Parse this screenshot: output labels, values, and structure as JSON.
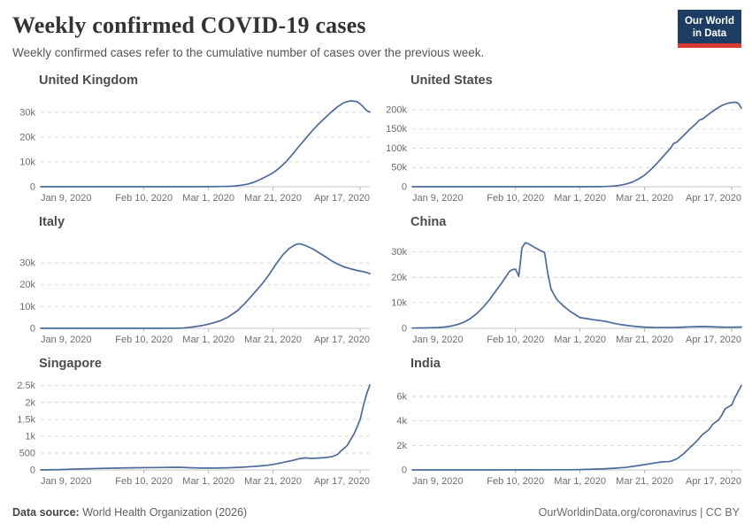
{
  "header": {
    "title": "Weekly confirmed COVID-19 cases",
    "subtitle": "Weekly confirmed cases refer to the cumulative number of cases over the previous week.",
    "logo": {
      "line1": "Our World",
      "line2": "in Data",
      "bg_color": "#1d3d63",
      "accent_color": "#d73c34"
    }
  },
  "footer": {
    "datasource_label": "Data source:",
    "datasource_value": " World Health Organization (2026)",
    "right_text": "OurWorldinData.org/coronavirus | CC BY"
  },
  "chart_data": {
    "type": "line",
    "line_color": "#4c6a9c",
    "grid_color": "#d9d9d9",
    "axis_color": "#c6c6c6",
    "tick_color": "#b4b4b4",
    "tick_text_color": "#6e6e6e",
    "grid_on": true,
    "x_unit": "days since Jan 9, 2020",
    "x_domain": [
      0,
      102
    ],
    "x_ticks": [
      {
        "day": 0,
        "label": "Jan 9, 2020"
      },
      {
        "day": 32,
        "label": "Feb 10, 2020"
      },
      {
        "day": 52,
        "label": "Mar 1, 2020"
      },
      {
        "day": 72,
        "label": "Mar 21, 2020"
      },
      {
        "day": 99,
        "label": "Apr 17, 2020"
      }
    ],
    "charts": [
      {
        "title": "United Kingdom",
        "y_max": 36000,
        "y_ticks": [
          {
            "v": 0,
            "label": "0"
          },
          {
            "v": 10000,
            "label": "10k"
          },
          {
            "v": 20000,
            "label": "20k"
          },
          {
            "v": 30000,
            "label": "30k"
          }
        ],
        "points": [
          [
            0,
            0
          ],
          [
            8,
            0
          ],
          [
            16,
            0
          ],
          [
            24,
            0
          ],
          [
            32,
            0
          ],
          [
            40,
            2
          ],
          [
            46,
            10
          ],
          [
            52,
            40
          ],
          [
            56,
            100
          ],
          [
            58,
            160
          ],
          [
            60,
            300
          ],
          [
            62,
            600
          ],
          [
            64,
            1000
          ],
          [
            66,
            1800
          ],
          [
            68,
            2900
          ],
          [
            70,
            4200
          ],
          [
            72,
            5600
          ],
          [
            74,
            7600
          ],
          [
            76,
            10000
          ],
          [
            78,
            13000
          ],
          [
            80,
            16200
          ],
          [
            82,
            19300
          ],
          [
            84,
            22300
          ],
          [
            86,
            25100
          ],
          [
            88,
            27600
          ],
          [
            90,
            30000
          ],
          [
            92,
            32200
          ],
          [
            94,
            33900
          ],
          [
            96,
            34600
          ],
          [
            98,
            34300
          ],
          [
            99,
            33400
          ],
          [
            100,
            32100
          ],
          [
            101,
            30700
          ],
          [
            102,
            30100
          ]
        ]
      },
      {
        "title": "United States",
        "y_max": 232000,
        "y_ticks": [
          {
            "v": 0,
            "label": "0"
          },
          {
            "v": 50000,
            "label": "50k"
          },
          {
            "v": 100000,
            "label": "100k"
          },
          {
            "v": 150000,
            "label": "150k"
          },
          {
            "v": 200000,
            "label": "200k"
          }
        ],
        "points": [
          [
            0,
            0
          ],
          [
            10,
            0
          ],
          [
            20,
            0
          ],
          [
            30,
            0
          ],
          [
            40,
            5
          ],
          [
            48,
            20
          ],
          [
            54,
            60
          ],
          [
            58,
            300
          ],
          [
            60,
            700
          ],
          [
            62,
            1500
          ],
          [
            64,
            3200
          ],
          [
            66,
            6500
          ],
          [
            68,
            11500
          ],
          [
            70,
            19500
          ],
          [
            72,
            30000
          ],
          [
            74,
            45000
          ],
          [
            76,
            62000
          ],
          [
            78,
            81000
          ],
          [
            80,
            100000
          ],
          [
            81,
            112000
          ],
          [
            82,
            116000
          ],
          [
            84,
            132000
          ],
          [
            86,
            149000
          ],
          [
            88,
            164000
          ],
          [
            89,
            173000
          ],
          [
            90,
            176000
          ],
          [
            92,
            189000
          ],
          [
            94,
            201000
          ],
          [
            96,
            211000
          ],
          [
            98,
            217000
          ],
          [
            100,
            219500
          ],
          [
            101,
            217000
          ],
          [
            102,
            204000
          ]
        ]
      },
      {
        "title": "Italy",
        "y_max": 41000,
        "y_ticks": [
          {
            "v": 0,
            "label": "0"
          },
          {
            "v": 10000,
            "label": "10k"
          },
          {
            "v": 20000,
            "label": "20k"
          },
          {
            "v": 30000,
            "label": "30k"
          }
        ],
        "points": [
          [
            0,
            0
          ],
          [
            12,
            0
          ],
          [
            24,
            0
          ],
          [
            36,
            0
          ],
          [
            42,
            30
          ],
          [
            44,
            120
          ],
          [
            46,
            400
          ],
          [
            48,
            800
          ],
          [
            50,
            1300
          ],
          [
            52,
            1900
          ],
          [
            54,
            2700
          ],
          [
            56,
            3700
          ],
          [
            58,
            5100
          ],
          [
            60,
            7100
          ],
          [
            61,
            8100
          ],
          [
            63,
            11000
          ],
          [
            65,
            14300
          ],
          [
            67,
            17600
          ],
          [
            69,
            21100
          ],
          [
            71,
            25100
          ],
          [
            73,
            29600
          ],
          [
            75,
            33600
          ],
          [
            77,
            36600
          ],
          [
            79,
            38400
          ],
          [
            80,
            38800
          ],
          [
            81,
            38500
          ],
          [
            82,
            38000
          ],
          [
            84,
            36700
          ],
          [
            85,
            35900
          ],
          [
            86,
            34900
          ],
          [
            88,
            33100
          ],
          [
            90,
            31100
          ],
          [
            92,
            29500
          ],
          [
            94,
            28200
          ],
          [
            96,
            27300
          ],
          [
            98,
            26600
          ],
          [
            100,
            26000
          ],
          [
            101,
            25600
          ],
          [
            102,
            25100
          ]
        ]
      },
      {
        "title": "China",
        "y_max": 35000,
        "y_ticks": [
          {
            "v": 0,
            "label": "0"
          },
          {
            "v": 10000,
            "label": "10k"
          },
          {
            "v": 20000,
            "label": "20k"
          },
          {
            "v": 30000,
            "label": "30k"
          }
        ],
        "points": [
          [
            0,
            120
          ],
          [
            4,
            170
          ],
          [
            8,
            320
          ],
          [
            10,
            520
          ],
          [
            12,
            850
          ],
          [
            14,
            1500
          ],
          [
            16,
            2400
          ],
          [
            18,
            3800
          ],
          [
            20,
            5800
          ],
          [
            22,
            8300
          ],
          [
            24,
            11300
          ],
          [
            26,
            14800
          ],
          [
            28,
            18300
          ],
          [
            29,
            20200
          ],
          [
            30,
            22100
          ],
          [
            31,
            23000
          ],
          [
            32,
            23200
          ],
          [
            33,
            20400
          ],
          [
            34,
            31500
          ],
          [
            35,
            33500
          ],
          [
            36,
            33100
          ],
          [
            38,
            31600
          ],
          [
            40,
            30300
          ],
          [
            41,
            29700
          ],
          [
            42,
            21500
          ],
          [
            43,
            15500
          ],
          [
            44,
            13000
          ],
          [
            45,
            11000
          ],
          [
            47,
            8600
          ],
          [
            49,
            6600
          ],
          [
            51,
            5000
          ],
          [
            52,
            4200
          ],
          [
            54,
            3800
          ],
          [
            56,
            3400
          ],
          [
            58,
            3100
          ],
          [
            60,
            2700
          ],
          [
            62,
            2100
          ],
          [
            64,
            1600
          ],
          [
            66,
            1200
          ],
          [
            68,
            900
          ],
          [
            70,
            650
          ],
          [
            72,
            500
          ],
          [
            75,
            350
          ],
          [
            78,
            300
          ],
          [
            81,
            360
          ],
          [
            84,
            490
          ],
          [
            86,
            590
          ],
          [
            88,
            660
          ],
          [
            90,
            690
          ],
          [
            92,
            650
          ],
          [
            94,
            560
          ],
          [
            96,
            480
          ],
          [
            98,
            440
          ],
          [
            100,
            470
          ],
          [
            102,
            520
          ]
        ]
      },
      {
        "title": "Singapore",
        "y_max": 2650,
        "y_ticks": [
          {
            "v": 0,
            "label": "0"
          },
          {
            "v": 500,
            "label": "500"
          },
          {
            "v": 1000,
            "label": "1k"
          },
          {
            "v": 1500,
            "label": "1.5k"
          },
          {
            "v": 2000,
            "label": "2k"
          },
          {
            "v": 2500,
            "label": "2.5k"
          }
        ],
        "points": [
          [
            0,
            0
          ],
          [
            6,
            10
          ],
          [
            12,
            28
          ],
          [
            18,
            45
          ],
          [
            24,
            55
          ],
          [
            30,
            65
          ],
          [
            36,
            72
          ],
          [
            40,
            76
          ],
          [
            43,
            80
          ],
          [
            46,
            66
          ],
          [
            50,
            56
          ],
          [
            54,
            56
          ],
          [
            58,
            63
          ],
          [
            62,
            80
          ],
          [
            65,
            96
          ],
          [
            68,
            118
          ],
          [
            70,
            136
          ],
          [
            72,
            162
          ],
          [
            74,
            200
          ],
          [
            76,
            242
          ],
          [
            78,
            282
          ],
          [
            80,
            330
          ],
          [
            82,
            356
          ],
          [
            84,
            342
          ],
          [
            86,
            352
          ],
          [
            88,
            366
          ],
          [
            90,
            388
          ],
          [
            91,
            420
          ],
          [
            92,
            462
          ],
          [
            93,
            560
          ],
          [
            94,
            640
          ],
          [
            95,
            724
          ],
          [
            96,
            890
          ],
          [
            97,
            1052
          ],
          [
            98,
            1256
          ],
          [
            99,
            1500
          ],
          [
            100,
            1900
          ],
          [
            101,
            2250
          ],
          [
            102,
            2520
          ]
        ]
      },
      {
        "title": "India",
        "y_max": 7300,
        "y_ticks": [
          {
            "v": 0,
            "label": "0"
          },
          {
            "v": 2000,
            "label": "2k"
          },
          {
            "v": 4000,
            "label": "4k"
          },
          {
            "v": 6000,
            "label": "6k"
          }
        ],
        "points": [
          [
            0,
            0
          ],
          [
            12,
            0
          ],
          [
            24,
            2
          ],
          [
            36,
            6
          ],
          [
            44,
            12
          ],
          [
            48,
            18
          ],
          [
            52,
            32
          ],
          [
            56,
            62
          ],
          [
            60,
            104
          ],
          [
            63,
            142
          ],
          [
            66,
            204
          ],
          [
            68,
            282
          ],
          [
            70,
            352
          ],
          [
            72,
            434
          ],
          [
            74,
            522
          ],
          [
            76,
            602
          ],
          [
            77,
            650
          ],
          [
            78,
            662
          ],
          [
            79,
            672
          ],
          [
            80,
            704
          ],
          [
            81,
            804
          ],
          [
            82,
            904
          ],
          [
            83,
            1104
          ],
          [
            84,
            1304
          ],
          [
            85,
            1554
          ],
          [
            86,
            1804
          ],
          [
            87,
            2054
          ],
          [
            88,
            2304
          ],
          [
            89,
            2604
          ],
          [
            90,
            2904
          ],
          [
            91,
            3104
          ],
          [
            92,
            3304
          ],
          [
            93,
            3704
          ],
          [
            94,
            3904
          ],
          [
            95,
            4104
          ],
          [
            96,
            4504
          ],
          [
            97,
            5004
          ],
          [
            98,
            5154
          ],
          [
            99,
            5304
          ],
          [
            100,
            5904
          ],
          [
            101,
            6404
          ],
          [
            102,
            6904
          ]
        ]
      }
    ]
  }
}
